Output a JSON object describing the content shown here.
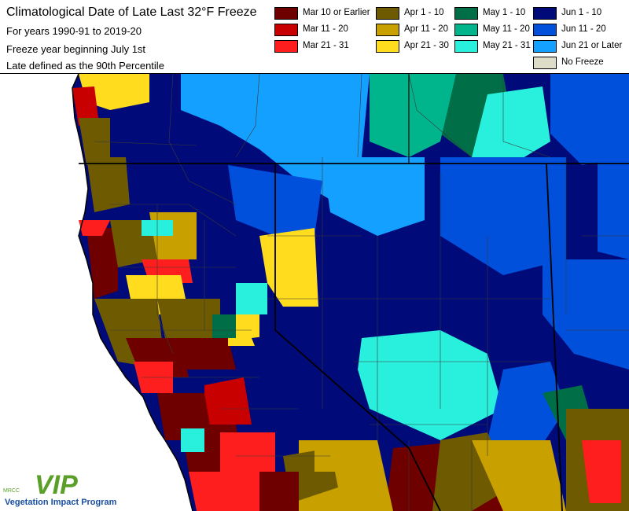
{
  "title": {
    "main": "Climatological Date of Late Last 32°F Freeze",
    "line2": "For years 1990-91 to 2019-20",
    "line3": "Freeze year beginning July 1st",
    "line4": "Late defined as the 90th Percentile"
  },
  "legend": [
    {
      "label": "Mar 10 or Earlier",
      "color": "#6e0000"
    },
    {
      "label": "Apr 1 - 10",
      "color": "#6e5a00"
    },
    {
      "label": "May 1 - 10",
      "color": "#006e46"
    },
    {
      "label": "Jun 1 - 10",
      "color": "#000a78"
    },
    {
      "label": "Mar 11 - 20",
      "color": "#c80000"
    },
    {
      "label": "Apr 11 - 20",
      "color": "#c8a000"
    },
    {
      "label": "May 11 - 20",
      "color": "#00b48c"
    },
    {
      "label": "Jun 11 - 20",
      "color": "#0050dc"
    },
    {
      "label": "Mar 21 - 31",
      "color": "#ff1e1e"
    },
    {
      "label": "Apr 21 - 30",
      "color": "#ffdc1e"
    },
    {
      "label": "May 21 - 31",
      "color": "#28f0dc"
    },
    {
      "label": "Jun 21 or Later",
      "color": "#14a0ff"
    },
    {
      "label": "No Freeze",
      "color": "#dcdcc8"
    }
  ],
  "logo": {
    "acronym": "MRCC",
    "mark": "VIP",
    "name": "Vegetation Impact Program"
  },
  "colors": {
    "ocean": "#ffffff",
    "border": "#000000",
    "county": "#3a3a3a",
    "logo_green": "#5aa028",
    "logo_blue": "#1a4fa0"
  }
}
